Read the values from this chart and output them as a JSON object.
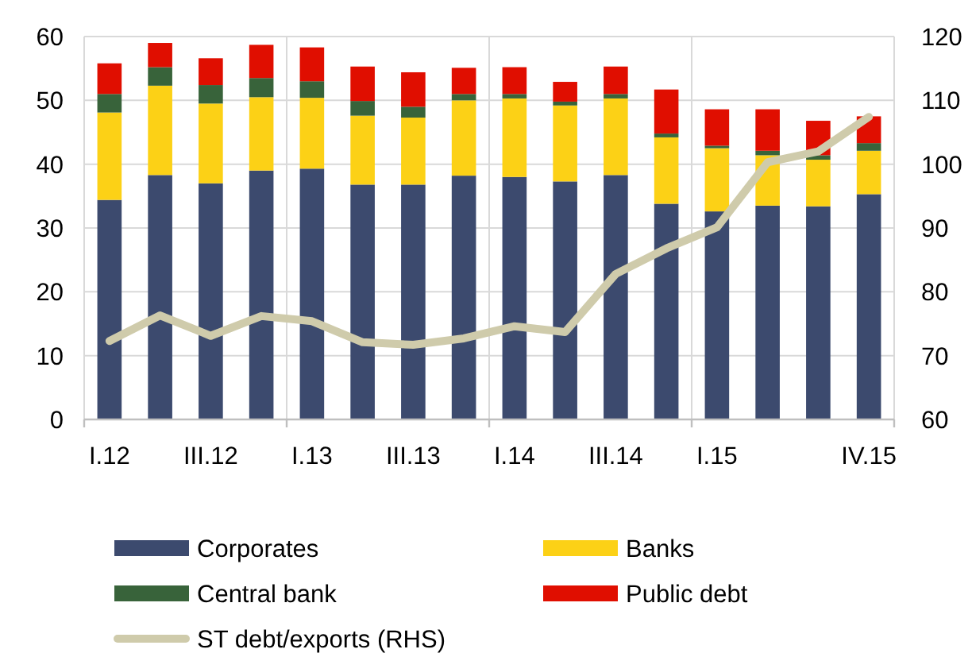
{
  "chart_data": {
    "type": "bar",
    "stacked": true,
    "categories": [
      "I.12",
      null,
      "III.12",
      null,
      "I.13",
      null,
      "III.13",
      null,
      "I.14",
      null,
      "III.14",
      null,
      "I.15",
      null,
      null,
      "IV.15"
    ],
    "series": [
      {
        "name": "Corporates",
        "color": "#3c4a6e",
        "values": [
          34.4,
          38.3,
          37.0,
          39.0,
          39.3,
          36.8,
          36.8,
          38.2,
          38.0,
          37.3,
          38.3,
          33.8,
          32.6,
          33.5,
          33.4,
          35.3
        ]
      },
      {
        "name": "Banks",
        "color": "#fcd116",
        "values": [
          13.7,
          14.0,
          12.5,
          11.5,
          11.1,
          10.8,
          10.5,
          11.8,
          12.3,
          11.9,
          12.0,
          10.4,
          9.9,
          7.9,
          7.3,
          6.8
        ]
      },
      {
        "name": "Central bank",
        "color": "#38633a",
        "values": [
          2.9,
          2.9,
          2.9,
          3.0,
          2.6,
          2.3,
          1.7,
          1.0,
          0.7,
          0.6,
          0.7,
          0.6,
          0.4,
          0.7,
          0.7,
          1.2
        ]
      },
      {
        "name": "Public debt",
        "color": "#e00e00",
        "values": [
          4.8,
          3.8,
          4.2,
          5.2,
          5.3,
          5.4,
          5.4,
          4.1,
          4.2,
          3.1,
          4.3,
          6.9,
          5.7,
          6.5,
          5.4,
          4.2
        ]
      },
      {
        "name": "ST debt/exports (RHS)",
        "type": "line",
        "axis": "y2",
        "color": "#cfcbab",
        "values": [
          72.3,
          76.3,
          73.1,
          76.2,
          75.4,
          72.1,
          71.7,
          72.7,
          74.6,
          73.7,
          82.8,
          86.8,
          90.1,
          100.3,
          102.0,
          107.4
        ]
      }
    ],
    "ylim": [
      0,
      60
    ],
    "yticks": [
      0,
      10,
      20,
      30,
      40,
      50,
      60
    ],
    "y2lim": [
      60,
      120
    ],
    "y2ticks": [
      60,
      70,
      80,
      90,
      100,
      110,
      120
    ],
    "grid": true,
    "legend": "bottom",
    "line_style": "solid"
  }
}
